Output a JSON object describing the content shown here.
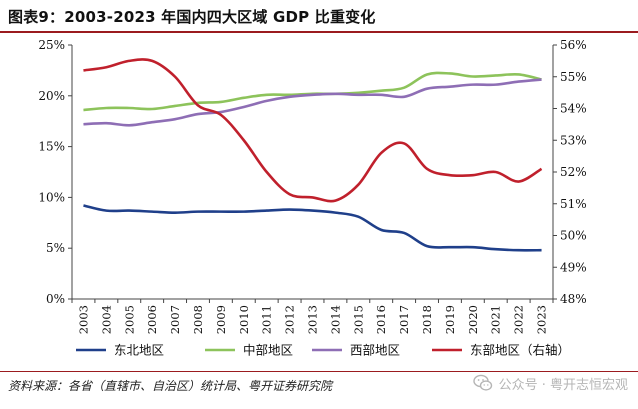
{
  "chart_data": {
    "type": "line",
    "title": "图表9：2003-2023 年国内四大区域 GDP 比重变化",
    "x": [
      "2003",
      "2004",
      "2005",
      "2006",
      "2007",
      "2008",
      "2009",
      "2010",
      "2011",
      "2012",
      "2013",
      "2014",
      "2015",
      "2016",
      "2017",
      "2018",
      "2019",
      "2020",
      "2021",
      "2022",
      "2023"
    ],
    "y_left": {
      "lim": [
        0,
        25
      ],
      "ticks": [
        0,
        5,
        10,
        15,
        20,
        25
      ],
      "tick_labels": [
        "0%",
        "5%",
        "10%",
        "15%",
        "20%",
        "25%"
      ]
    },
    "y_right": {
      "lim": [
        48,
        56
      ],
      "ticks": [
        48,
        49,
        50,
        51,
        52,
        53,
        54,
        55,
        56
      ],
      "tick_labels": [
        "48%",
        "49%",
        "50%",
        "51%",
        "52%",
        "53%",
        "54%",
        "55%",
        "56%"
      ]
    },
    "series": [
      {
        "name": "东北地区",
        "axis": "left",
        "color": "#1f3f8a",
        "values": [
          9.2,
          8.7,
          8.7,
          8.6,
          8.5,
          8.6,
          8.6,
          8.6,
          8.7,
          8.8,
          8.7,
          8.5,
          8.1,
          6.8,
          6.5,
          5.2,
          5.1,
          5.1,
          4.9,
          4.8,
          4.8
        ]
      },
      {
        "name": "中部地区",
        "axis": "left",
        "color": "#8dc35b",
        "values": [
          18.6,
          18.8,
          18.8,
          18.7,
          19.0,
          19.3,
          19.4,
          19.8,
          20.1,
          20.1,
          20.2,
          20.2,
          20.3,
          20.5,
          20.8,
          22.1,
          22.2,
          21.9,
          22.0,
          22.1,
          21.6
        ]
      },
      {
        "name": "西部地区",
        "axis": "left",
        "color": "#8e6eb5",
        "values": [
          17.2,
          17.3,
          17.1,
          17.4,
          17.7,
          18.2,
          18.4,
          18.9,
          19.5,
          19.9,
          20.1,
          20.2,
          20.1,
          20.1,
          19.9,
          20.7,
          20.9,
          21.1,
          21.1,
          21.4,
          21.6
        ]
      },
      {
        "name": "东部地区（右轴）",
        "axis": "right",
        "color": "#c0202c",
        "values": [
          55.2,
          55.3,
          55.5,
          55.5,
          55.0,
          54.1,
          53.8,
          53.0,
          52.0,
          51.3,
          51.2,
          51.1,
          51.6,
          52.6,
          52.9,
          52.1,
          51.9,
          51.9,
          52.0,
          51.7,
          52.1
        ]
      }
    ],
    "grid": false,
    "legend_position": "bottom"
  },
  "source": "资料来源：各省（直辖市、自治区）统计局、粤开证券研究院",
  "watermark": "公众号 · 粤开志恒宏观"
}
